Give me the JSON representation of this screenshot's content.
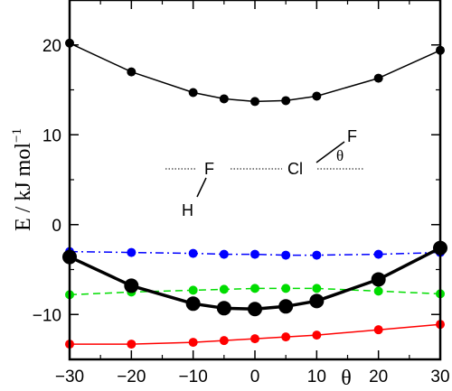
{
  "chart_data": {
    "type": "line",
    "xlabel": "θ",
    "ylabel": "E / kJ mol",
    "ylabel_superscript": "−1",
    "xlim": [
      -30,
      30
    ],
    "ylim": [
      -15,
      25
    ],
    "x_ticks": [
      "−30",
      "−20",
      "−10",
      "0",
      "10",
      "20",
      "30"
    ],
    "y_ticks": [
      "20",
      "10",
      "0",
      "−10"
    ],
    "grid": false,
    "legend": "none",
    "molecule_labels": {
      "hydrogen": "H",
      "fluorine_left": "F",
      "chlorine": "Cl",
      "fluorine_right": "F",
      "angle": "θ"
    },
    "series": [
      {
        "color": "#000000",
        "line_style": "solid",
        "marker": "circle-small",
        "line_weight": "thin",
        "x": [
          -30,
          -20,
          -10,
          -5,
          0,
          5,
          10,
          20,
          30
        ],
        "y": [
          20.2,
          17.0,
          14.7,
          14.0,
          13.7,
          13.8,
          14.3,
          16.3,
          19.4
        ]
      },
      {
        "color": "#0000ff",
        "line_style": "dash-dot",
        "marker": "circle-small",
        "line_weight": "thin",
        "x": [
          -30,
          -20,
          -10,
          -5,
          0,
          5,
          10,
          20,
          30
        ],
        "y": [
          -3.0,
          -3.1,
          -3.2,
          -3.3,
          -3.3,
          -3.4,
          -3.4,
          -3.3,
          -3.1
        ]
      },
      {
        "color": "#00dd00",
        "line_style": "dashed",
        "marker": "circle-small",
        "line_weight": "thin",
        "x": [
          -30,
          -20,
          -10,
          -5,
          0,
          5,
          10,
          20,
          30
        ],
        "y": [
          -7.8,
          -7.5,
          -7.3,
          -7.2,
          -7.1,
          -7.1,
          -7.1,
          -7.4,
          -7.7
        ]
      },
      {
        "color": "#000000",
        "line_style": "solid",
        "marker": "circle-large",
        "line_weight": "thick",
        "x": [
          -30,
          -20,
          -10,
          -5,
          0,
          5,
          10,
          20,
          30
        ],
        "y": [
          -3.6,
          -6.8,
          -8.8,
          -9.3,
          -9.4,
          -9.1,
          -8.5,
          -6.1,
          -2.6
        ]
      },
      {
        "color": "#ff0000",
        "line_style": "solid",
        "marker": "circle-small",
        "line_weight": "thin",
        "x": [
          -30,
          -20,
          -10,
          -5,
          0,
          5,
          10,
          20,
          30
        ],
        "y": [
          -13.3,
          -13.3,
          -13.1,
          -12.9,
          -12.7,
          -12.5,
          -12.3,
          -11.7,
          -11.1
        ]
      }
    ]
  }
}
